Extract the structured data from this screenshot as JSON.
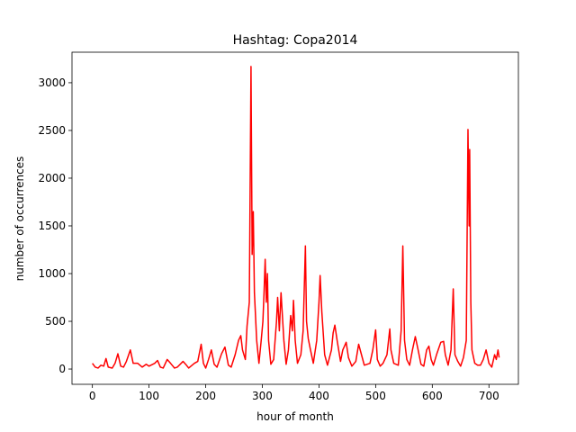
{
  "chart_data": {
    "type": "line",
    "title": "Hashtag: Copa2014",
    "xlabel": "hour of month",
    "ylabel": "number of occurrences",
    "x": [
      0,
      5,
      10,
      15,
      20,
      24,
      28,
      35,
      40,
      45,
      50,
      55,
      60,
      67,
      72,
      80,
      88,
      95,
      100,
      110,
      115,
      120,
      125,
      132,
      138,
      145,
      150,
      160,
      166,
      170,
      180,
      186,
      192,
      196,
      200,
      205,
      210,
      215,
      220,
      228,
      234,
      240,
      245,
      252,
      258,
      262,
      265,
      270,
      273,
      277,
      280,
      282,
      284,
      286,
      290,
      294,
      298,
      301,
      303,
      305,
      307,
      309,
      311,
      315,
      320,
      325,
      327,
      330,
      333,
      335,
      338,
      342,
      346,
      350,
      353,
      355,
      358,
      362,
      368,
      372,
      376,
      378,
      381,
      385,
      390,
      396,
      400,
      402,
      405,
      410,
      415,
      422,
      425,
      428,
      432,
      438,
      442,
      448,
      452,
      458,
      465,
      470,
      475,
      480,
      490,
      495,
      500,
      503,
      508,
      513,
      520,
      525,
      527,
      532,
      540,
      545,
      548,
      551,
      555,
      560,
      565,
      570,
      575,
      580,
      585,
      590,
      594,
      598,
      602,
      608,
      615,
      620,
      623,
      628,
      633,
      637,
      640,
      645,
      650,
      655,
      660,
      663,
      665,
      666,
      668,
      670,
      675,
      680,
      685,
      690,
      695,
      700,
      705,
      710,
      713,
      716,
      718
    ],
    "series": [
      {
        "name": "Copa2014",
        "color": "#ff0000",
        "values": [
          60,
          20,
          10,
          40,
          30,
          110,
          20,
          10,
          60,
          160,
          30,
          20,
          80,
          200,
          60,
          60,
          20,
          50,
          30,
          60,
          90,
          20,
          10,
          100,
          60,
          10,
          20,
          80,
          40,
          10,
          60,
          80,
          260,
          60,
          10,
          100,
          200,
          50,
          20,
          160,
          230,
          40,
          20,
          150,
          300,
          350,
          200,
          100,
          450,
          700,
          3170,
          1200,
          1650,
          800,
          300,
          60,
          300,
          500,
          800,
          1150,
          700,
          1000,
          300,
          50,
          100,
          500,
          750,
          400,
          800,
          600,
          300,
          50,
          200,
          560,
          400,
          720,
          300,
          60,
          150,
          400,
          1290,
          500,
          320,
          200,
          60,
          300,
          700,
          980,
          600,
          150,
          40,
          200,
          380,
          460,
          300,
          80,
          200,
          280,
          120,
          30,
          80,
          260,
          150,
          40,
          60,
          200,
          410,
          100,
          30,
          60,
          150,
          420,
          200,
          60,
          40,
          400,
          1290,
          300,
          100,
          40,
          200,
          340,
          200,
          50,
          30,
          200,
          240,
          100,
          40,
          160,
          280,
          290,
          150,
          40,
          200,
          840,
          150,
          80,
          30,
          120,
          300,
          2510,
          1500,
          2300,
          700,
          200,
          60,
          40,
          40,
          100,
          200,
          60,
          20,
          150,
          100,
          200,
          120
        ]
      }
    ],
    "xlim": [
      -36,
      752
    ],
    "ylim": [
      -160,
      3320
    ],
    "xticks": [
      0,
      100,
      200,
      300,
      400,
      500,
      600,
      700
    ],
    "yticks": [
      0,
      500,
      1000,
      1500,
      2000,
      2500,
      3000
    ]
  }
}
